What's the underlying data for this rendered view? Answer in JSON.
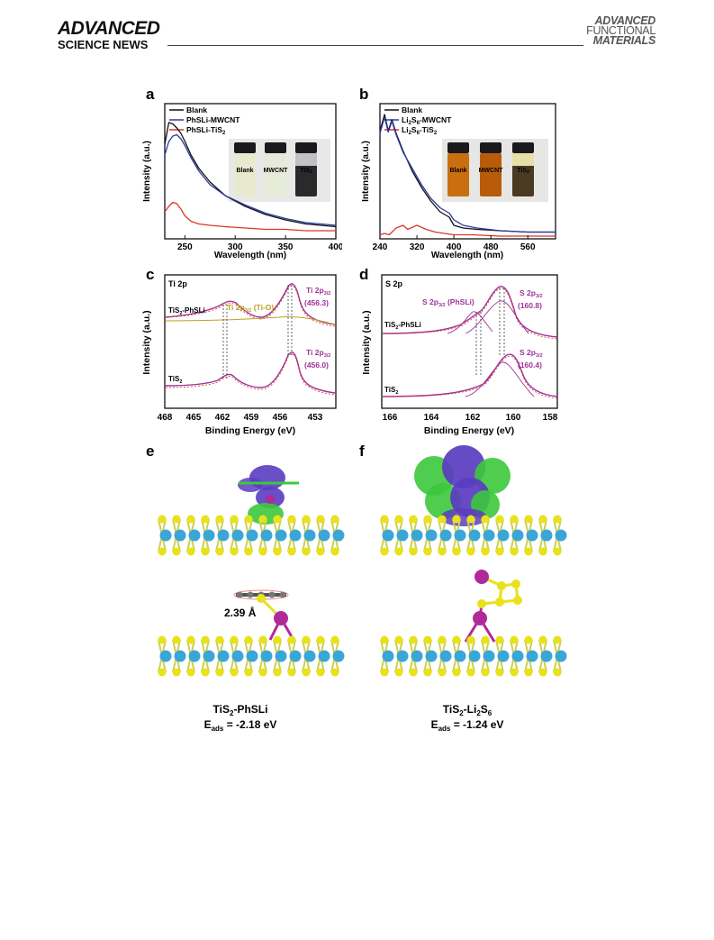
{
  "header": {
    "left_line1": "ADVANCED",
    "left_line2": "SCIENCE NEWS",
    "right_line1": "ADVANCED",
    "right_line2": "FUNCTIONAL",
    "right_line3": "MATERIALS"
  },
  "panels": {
    "a": {
      "letter": "a",
      "xlabel": "Wavelength (nm)",
      "ylabel": "Intensity (a.u.)",
      "xticks": [
        "250",
        "300",
        "350",
        "400"
      ],
      "legend": [
        "Blank",
        "PhSLi-MWCNT",
        "PhSLi-TiS2"
      ],
      "vials": [
        "Blank",
        "MWCNT",
        "TiS2"
      ]
    },
    "b": {
      "letter": "b",
      "xlabel": "Wavelength (nm)",
      "ylabel": "Intensity (a.u.)",
      "xticks": [
        "240",
        "320",
        "400",
        "480",
        "560"
      ],
      "legend": [
        "Blank",
        "Li2S6-MWCNT",
        "Li2S6-TiS2"
      ],
      "vials": [
        "Blank",
        "MWCNT",
        "TiS2"
      ]
    },
    "c": {
      "letter": "c",
      "title": "Ti 2p",
      "xlabel": "Binding Energy (eV)",
      "ylabel": "Intensity (a.u.)",
      "xticks": [
        "468",
        "465",
        "462",
        "459",
        "456",
        "453"
      ],
      "top_label": "TiS2-PhSLi",
      "bottom_label": "TiS2",
      "ann_tio": "Ti 2p3/2 (Ti-O)",
      "ann_top_peak": "Ti 2p3/2",
      "ann_top_val": "(456.3)",
      "ann_bot_peak": "Ti 2p3/2",
      "ann_bot_val": "(456.0)"
    },
    "d": {
      "letter": "d",
      "title": "S 2p",
      "xlabel": "Binding Energy (eV)",
      "ylabel": "Intensity (a.u.)",
      "xticks": [
        "166",
        "164",
        "162",
        "160",
        "158"
      ],
      "top_label": "TiS2-PhSLi",
      "bottom_label": "TiS2",
      "ann_phsli": "S 2p3/2 (PhSLi)",
      "ann_top_peak": "S 2p3/2",
      "ann_top_val": "(160.8)",
      "ann_bot_peak": "S 2p3/2",
      "ann_bot_val": "(160.4)"
    },
    "e": {
      "letter": "e",
      "distance": "2.39 Å",
      "caption_main": "TiS2-PhSLi",
      "caption_eads": "Eads = -2.18 eV"
    },
    "f": {
      "letter": "f",
      "caption_main": "TiS2-Li2S6",
      "caption_eads": "Eads = -1.24 eV"
    }
  },
  "colors": {
    "black_curve": "#111111",
    "blue_curve": "#2b3a9e",
    "red_curve": "#d8382b",
    "purple": "#a0329a",
    "olive": "#b8a222",
    "ti_atom": "#3aa6d8",
    "s_atom": "#e8e21a",
    "li_atom": "#b02a9a",
    "iso_green": "#3cc83c",
    "iso_purple": "#5a3cc0"
  },
  "chart_data": [
    {
      "type": "line",
      "panel": "a",
      "xlabel": "Wavelength (nm)",
      "ylabel": "Intensity (a.u.)",
      "xlim": [
        230,
        400
      ],
      "series": [
        {
          "name": "Blank",
          "x": [
            230,
            234,
            238,
            242,
            246,
            250,
            256,
            264,
            275,
            290,
            310,
            330,
            350,
            370,
            400
          ],
          "y": [
            0.7,
            0.86,
            0.85,
            0.82,
            0.78,
            0.72,
            0.62,
            0.52,
            0.42,
            0.32,
            0.24,
            0.18,
            0.14,
            0.11,
            0.09
          ]
        },
        {
          "name": "PhSLi-MWCNT",
          "x": [
            230,
            234,
            238,
            242,
            246,
            250,
            256,
            264,
            275,
            290,
            310,
            330,
            350,
            370,
            400
          ],
          "y": [
            0.62,
            0.72,
            0.76,
            0.77,
            0.74,
            0.69,
            0.6,
            0.5,
            0.4,
            0.32,
            0.25,
            0.19,
            0.15,
            0.12,
            0.1
          ]
        },
        {
          "name": "PhSLi-TiS2",
          "x": [
            230,
            234,
            238,
            242,
            246,
            250,
            256,
            264,
            275,
            290,
            310,
            330,
            350,
            370,
            400
          ],
          "y": [
            0.2,
            0.24,
            0.27,
            0.26,
            0.22,
            0.17,
            0.13,
            0.11,
            0.1,
            0.09,
            0.08,
            0.07,
            0.07,
            0.06,
            0.06
          ]
        }
      ]
    },
    {
      "type": "line",
      "panel": "b",
      "xlabel": "Wavelength (nm)",
      "ylabel": "Intensity (a.u.)",
      "xlim": [
        240,
        620
      ],
      "series": [
        {
          "name": "Blank",
          "x": [
            240,
            250,
            258,
            266,
            275,
            290,
            310,
            330,
            350,
            370,
            390,
            400,
            420,
            450,
            500,
            560,
            620
          ],
          "y": [
            0.8,
            0.92,
            0.8,
            0.88,
            0.78,
            0.65,
            0.5,
            0.38,
            0.28,
            0.2,
            0.16,
            0.1,
            0.08,
            0.07,
            0.06,
            0.05,
            0.05
          ]
        },
        {
          "name": "Li2S6-MWCNT",
          "x": [
            240,
            250,
            258,
            266,
            275,
            290,
            310,
            330,
            350,
            370,
            390,
            400,
            420,
            450,
            500,
            560,
            620
          ],
          "y": [
            0.78,
            0.9,
            0.79,
            0.87,
            0.77,
            0.64,
            0.52,
            0.4,
            0.3,
            0.23,
            0.19,
            0.14,
            0.1,
            0.08,
            0.06,
            0.05,
            0.05
          ]
        },
        {
          "name": "Li2S6-TiS2",
          "x": [
            240,
            250,
            260,
            275,
            290,
            300,
            320,
            340,
            360,
            380,
            400,
            440,
            500,
            560,
            620
          ],
          "y": [
            0.03,
            0.04,
            0.03,
            0.08,
            0.1,
            0.07,
            0.1,
            0.07,
            0.05,
            0.04,
            0.03,
            0.03,
            0.02,
            0.02,
            0.02
          ]
        }
      ]
    }
  ]
}
